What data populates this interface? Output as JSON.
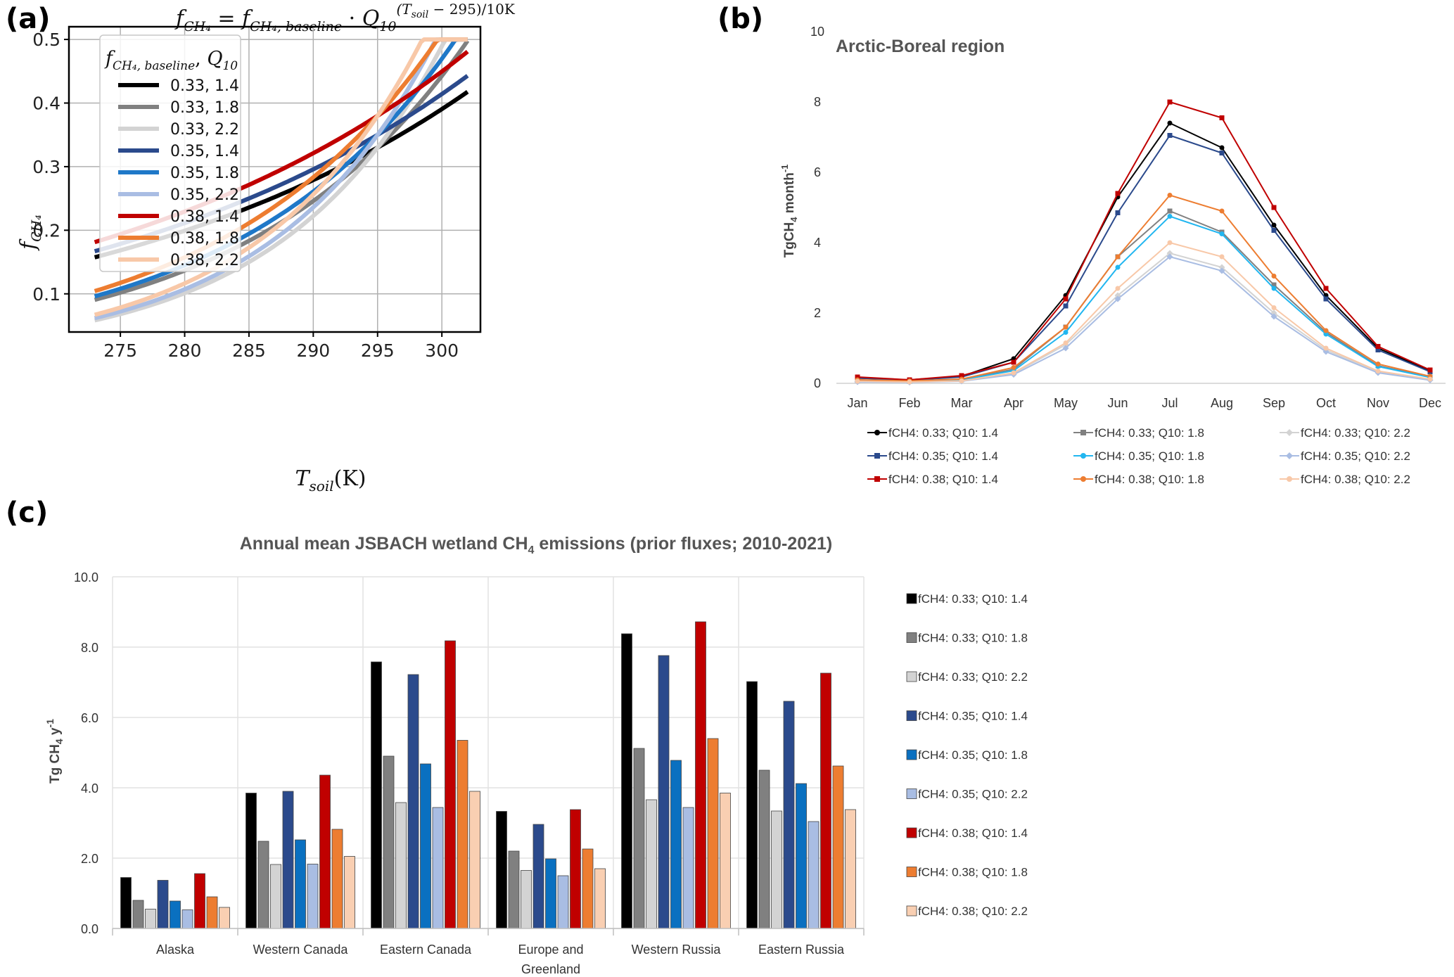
{
  "panel_labels": {
    "a": "(a)",
    "b": "(b)",
    "c": "(c)"
  },
  "colors": {
    "s0": "#000000",
    "s1": "#808080",
    "s2": "#d3d3d3",
    "s3": "#2b4a8c",
    "s4": "#1f78c8",
    "s5": "#a9bde3",
    "s6": "#c00000",
    "s7": "#ed7d31",
    "s8": "#f8c8a8",
    "b_s4": "#21b6f0",
    "bar_s4": "#0a70c0",
    "bar_s8": "#f9cfb2"
  },
  "chart_data": [
    {
      "id": "a",
      "type": "line",
      "title": "f_CH4 = f_CH4,baseline · Q10^((T_soil − 295)/10K)",
      "xlabel": "T_soil(K)",
      "ylabel": "f_CH4",
      "xlim": [
        271,
        303
      ],
      "ylim": [
        0.04,
        0.52
      ],
      "xticks": [
        275,
        280,
        285,
        290,
        295,
        300
      ],
      "yticks": [
        0.1,
        0.2,
        0.3,
        0.4,
        0.5
      ],
      "grid": true,
      "legend": {
        "title": "f_CH4,baseline, Q10",
        "placement": "upper-left"
      },
      "x_range": [
        273,
        302
      ],
      "cap": 0.5,
      "formula": "f_baseline * Q10^((T - 295)/10)",
      "series": [
        {
          "name": "0.33, 1.4",
          "f_baseline": 0.33,
          "Q10": 1.4,
          "color": "s0"
        },
        {
          "name": "0.33, 1.8",
          "f_baseline": 0.33,
          "Q10": 1.8,
          "color": "s1"
        },
        {
          "name": "0.33, 2.2",
          "f_baseline": 0.33,
          "Q10": 2.2,
          "color": "s2"
        },
        {
          "name": "0.35, 1.4",
          "f_baseline": 0.35,
          "Q10": 1.4,
          "color": "s3"
        },
        {
          "name": "0.35, 1.8",
          "f_baseline": 0.35,
          "Q10": 1.8,
          "color": "s4"
        },
        {
          "name": "0.35, 2.2",
          "f_baseline": 0.35,
          "Q10": 2.2,
          "color": "s5"
        },
        {
          "name": "0.38, 1.4",
          "f_baseline": 0.38,
          "Q10": 1.4,
          "color": "s6"
        },
        {
          "name": "0.38, 1.8",
          "f_baseline": 0.38,
          "Q10": 1.8,
          "color": "s7"
        },
        {
          "name": "0.38, 2.2",
          "f_baseline": 0.38,
          "Q10": 2.2,
          "color": "s8"
        }
      ]
    },
    {
      "id": "b",
      "type": "line",
      "title": "Arctic-Boreal region",
      "ylabel": "TgCH4 month-1",
      "ylim": [
        0,
        10
      ],
      "yticks": [
        0,
        2,
        4,
        6,
        8,
        10
      ],
      "grid": false,
      "legend": {
        "placement": "bottom"
      },
      "categories": [
        "Jan",
        "Feb",
        "Mar",
        "Apr",
        "May",
        "Jun",
        "Jul",
        "Aug",
        "Sep",
        "Oct",
        "Nov",
        "Dec"
      ],
      "series": [
        {
          "name": "fCH4: 0.33; Q10: 1.4",
          "color": "s0",
          "marker": "circle",
          "values": [
            0.15,
            0.1,
            0.2,
            0.7,
            2.5,
            5.3,
            7.4,
            6.7,
            4.5,
            2.5,
            1.0,
            0.35
          ]
        },
        {
          "name": "fCH4: 0.33; Q10: 1.8",
          "color": "s1",
          "marker": "square",
          "values": [
            0.08,
            0.06,
            0.1,
            0.4,
            1.6,
            3.6,
            4.9,
            4.3,
            2.8,
            1.45,
            0.5,
            0.18
          ]
        },
        {
          "name": "fCH4: 0.33; Q10: 2.2",
          "color": "s2",
          "marker": "diamond",
          "values": [
            0.05,
            0.04,
            0.07,
            0.28,
            1.1,
            2.5,
            3.7,
            3.3,
            2.0,
            0.95,
            0.32,
            0.1
          ]
        },
        {
          "name": "fCH4: 0.35; Q10: 1.4",
          "color": "s3",
          "marker": "square",
          "values": [
            0.15,
            0.09,
            0.18,
            0.6,
            2.2,
            4.85,
            7.05,
            6.55,
            4.35,
            2.4,
            0.95,
            0.33
          ]
        },
        {
          "name": "fCH4: 0.35; Q10: 1.8",
          "color": "b_s4",
          "marker": "circle",
          "values": [
            0.08,
            0.06,
            0.1,
            0.36,
            1.45,
            3.3,
            4.75,
            4.25,
            2.7,
            1.4,
            0.48,
            0.17
          ]
        },
        {
          "name": "fCH4: 0.35; Q10: 2.2",
          "color": "s5",
          "marker": "diamond",
          "values": [
            0.04,
            0.03,
            0.06,
            0.25,
            1.0,
            2.4,
            3.6,
            3.2,
            1.9,
            0.9,
            0.3,
            0.09
          ]
        },
        {
          "name": "fCH4: 0.38; Q10: 1.4",
          "color": "s6",
          "marker": "square",
          "values": [
            0.18,
            0.1,
            0.22,
            0.6,
            2.4,
            5.4,
            8.0,
            7.55,
            5.0,
            2.7,
            1.05,
            0.38
          ]
        },
        {
          "name": "fCH4: 0.38; Q10: 1.8",
          "color": "s7",
          "marker": "circle",
          "values": [
            0.1,
            0.07,
            0.12,
            0.45,
            1.6,
            3.6,
            5.35,
            4.9,
            3.05,
            1.5,
            0.55,
            0.2
          ]
        },
        {
          "name": "fCH4: 0.38; Q10: 2.2",
          "color": "s8",
          "marker": "circle",
          "values": [
            0.06,
            0.04,
            0.07,
            0.3,
            1.15,
            2.7,
            4.0,
            3.6,
            2.15,
            1.0,
            0.35,
            0.12
          ]
        }
      ]
    },
    {
      "id": "c",
      "type": "bar",
      "title": "Annual mean JSBACH wetland CH4 emissions (prior fluxes; 2010-2021)",
      "ylabel": "Tg CH4 y-1",
      "ylim": [
        0,
        10
      ],
      "yticks": [
        "0.0",
        "2.0",
        "4.0",
        "6.0",
        "8.0",
        "10.0"
      ],
      "grid": true,
      "legend": {
        "placement": "right"
      },
      "categories": [
        "Alaska",
        "Western Canada",
        "Eastern Canada",
        "Europe and Greenland",
        "Western Russia",
        "Eastern Russia"
      ],
      "category_lines": [
        [
          "Alaska"
        ],
        [
          "Western Canada"
        ],
        [
          "Eastern Canada"
        ],
        [
          "Europe and",
          "Greenland"
        ],
        [
          "Western Russia"
        ],
        [
          "Eastern Russia"
        ]
      ],
      "series": [
        {
          "name": "fCH4: 0.33; Q10: 1.4",
          "color": "s0",
          "values": [
            1.45,
            3.85,
            7.58,
            3.33,
            8.38,
            7.02
          ]
        },
        {
          "name": "fCH4: 0.33; Q10: 1.8",
          "color": "s1",
          "values": [
            0.8,
            2.48,
            4.9,
            2.2,
            5.12,
            4.5
          ]
        },
        {
          "name": "fCH4: 0.33; Q10: 2.2",
          "color": "s2",
          "values": [
            0.55,
            1.82,
            3.58,
            1.65,
            3.66,
            3.34
          ]
        },
        {
          "name": "fCH4: 0.35; Q10: 1.4",
          "color": "s3",
          "values": [
            1.37,
            3.9,
            7.22,
            2.96,
            7.76,
            6.46
          ]
        },
        {
          "name": "fCH4: 0.35; Q10: 1.8",
          "color": "bar_s4",
          "values": [
            0.78,
            2.52,
            4.68,
            1.98,
            4.78,
            4.12
          ]
        },
        {
          "name": "fCH4: 0.35; Q10: 2.2",
          "color": "s5",
          "values": [
            0.53,
            1.83,
            3.44,
            1.5,
            3.44,
            3.04
          ]
        },
        {
          "name": "fCH4: 0.38; Q10: 1.4",
          "color": "s6",
          "values": [
            1.56,
            4.36,
            8.18,
            3.38,
            8.72,
            7.26
          ]
        },
        {
          "name": "fCH4: 0.38; Q10: 1.8",
          "color": "s7",
          "values": [
            0.9,
            2.82,
            5.35,
            2.26,
            5.4,
            4.62
          ]
        },
        {
          "name": "fCH4: 0.38; Q10: 2.2",
          "color": "bar_s8",
          "values": [
            0.6,
            2.05,
            3.9,
            1.7,
            3.85,
            3.38
          ]
        }
      ]
    }
  ]
}
